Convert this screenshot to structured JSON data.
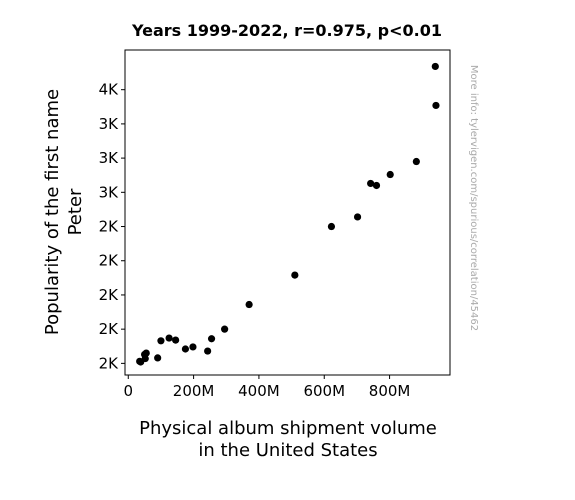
{
  "chart_data": {
    "type": "scatter",
    "title": "Years 1999-2022, r=0.975, p<0.01",
    "xlabel_lines": [
      "Physical album shipment volume",
      "in the United States"
    ],
    "ylabel_lines": [
      "Popularity of the first name",
      "Peter"
    ],
    "side_note": "More info: tylervigen.com/spurious/correlation/45462",
    "xlim": [
      -10,
      985
    ],
    "ylim": [
      1415,
      3790
    ],
    "x_ticks": [
      {
        "value": 0,
        "label": "0"
      },
      {
        "value": 200,
        "label": "200M"
      },
      {
        "value": 400,
        "label": "400M"
      },
      {
        "value": 600,
        "label": "600M"
      },
      {
        "value": 800,
        "label": "800M"
      }
    ],
    "y_ticks": [
      {
        "value": 1500,
        "label": "2K"
      },
      {
        "value": 1750,
        "label": "2K"
      },
      {
        "value": 2000,
        "label": "2K"
      },
      {
        "value": 2250,
        "label": "2K"
      },
      {
        "value": 2500,
        "label": "2K"
      },
      {
        "value": 2750,
        "label": "3K"
      },
      {
        "value": 3000,
        "label": "3K"
      },
      {
        "value": 3250,
        "label": "3K"
      },
      {
        "value": 3500,
        "label": "4K"
      }
    ],
    "marker_color": "#000000",
    "points": [
      {
        "x": 940,
        "y": 3670
      },
      {
        "x": 942,
        "y": 3385
      },
      {
        "x": 882,
        "y": 2975
      },
      {
        "x": 802,
        "y": 2880
      },
      {
        "x": 742,
        "y": 2815
      },
      {
        "x": 760,
        "y": 2800
      },
      {
        "x": 702,
        "y": 2570
      },
      {
        "x": 622,
        "y": 2500
      },
      {
        "x": 510,
        "y": 2145
      },
      {
        "x": 370,
        "y": 1930
      },
      {
        "x": 295,
        "y": 1750
      },
      {
        "x": 255,
        "y": 1680
      },
      {
        "x": 125,
        "y": 1685
      },
      {
        "x": 145,
        "y": 1670
      },
      {
        "x": 100,
        "y": 1665
      },
      {
        "x": 198,
        "y": 1620
      },
      {
        "x": 175,
        "y": 1605
      },
      {
        "x": 243,
        "y": 1590
      },
      {
        "x": 55,
        "y": 1575
      },
      {
        "x": 50,
        "y": 1565
      },
      {
        "x": 90,
        "y": 1540
      },
      {
        "x": 52,
        "y": 1535
      },
      {
        "x": 35,
        "y": 1515
      },
      {
        "x": 38,
        "y": 1510
      }
    ]
  }
}
